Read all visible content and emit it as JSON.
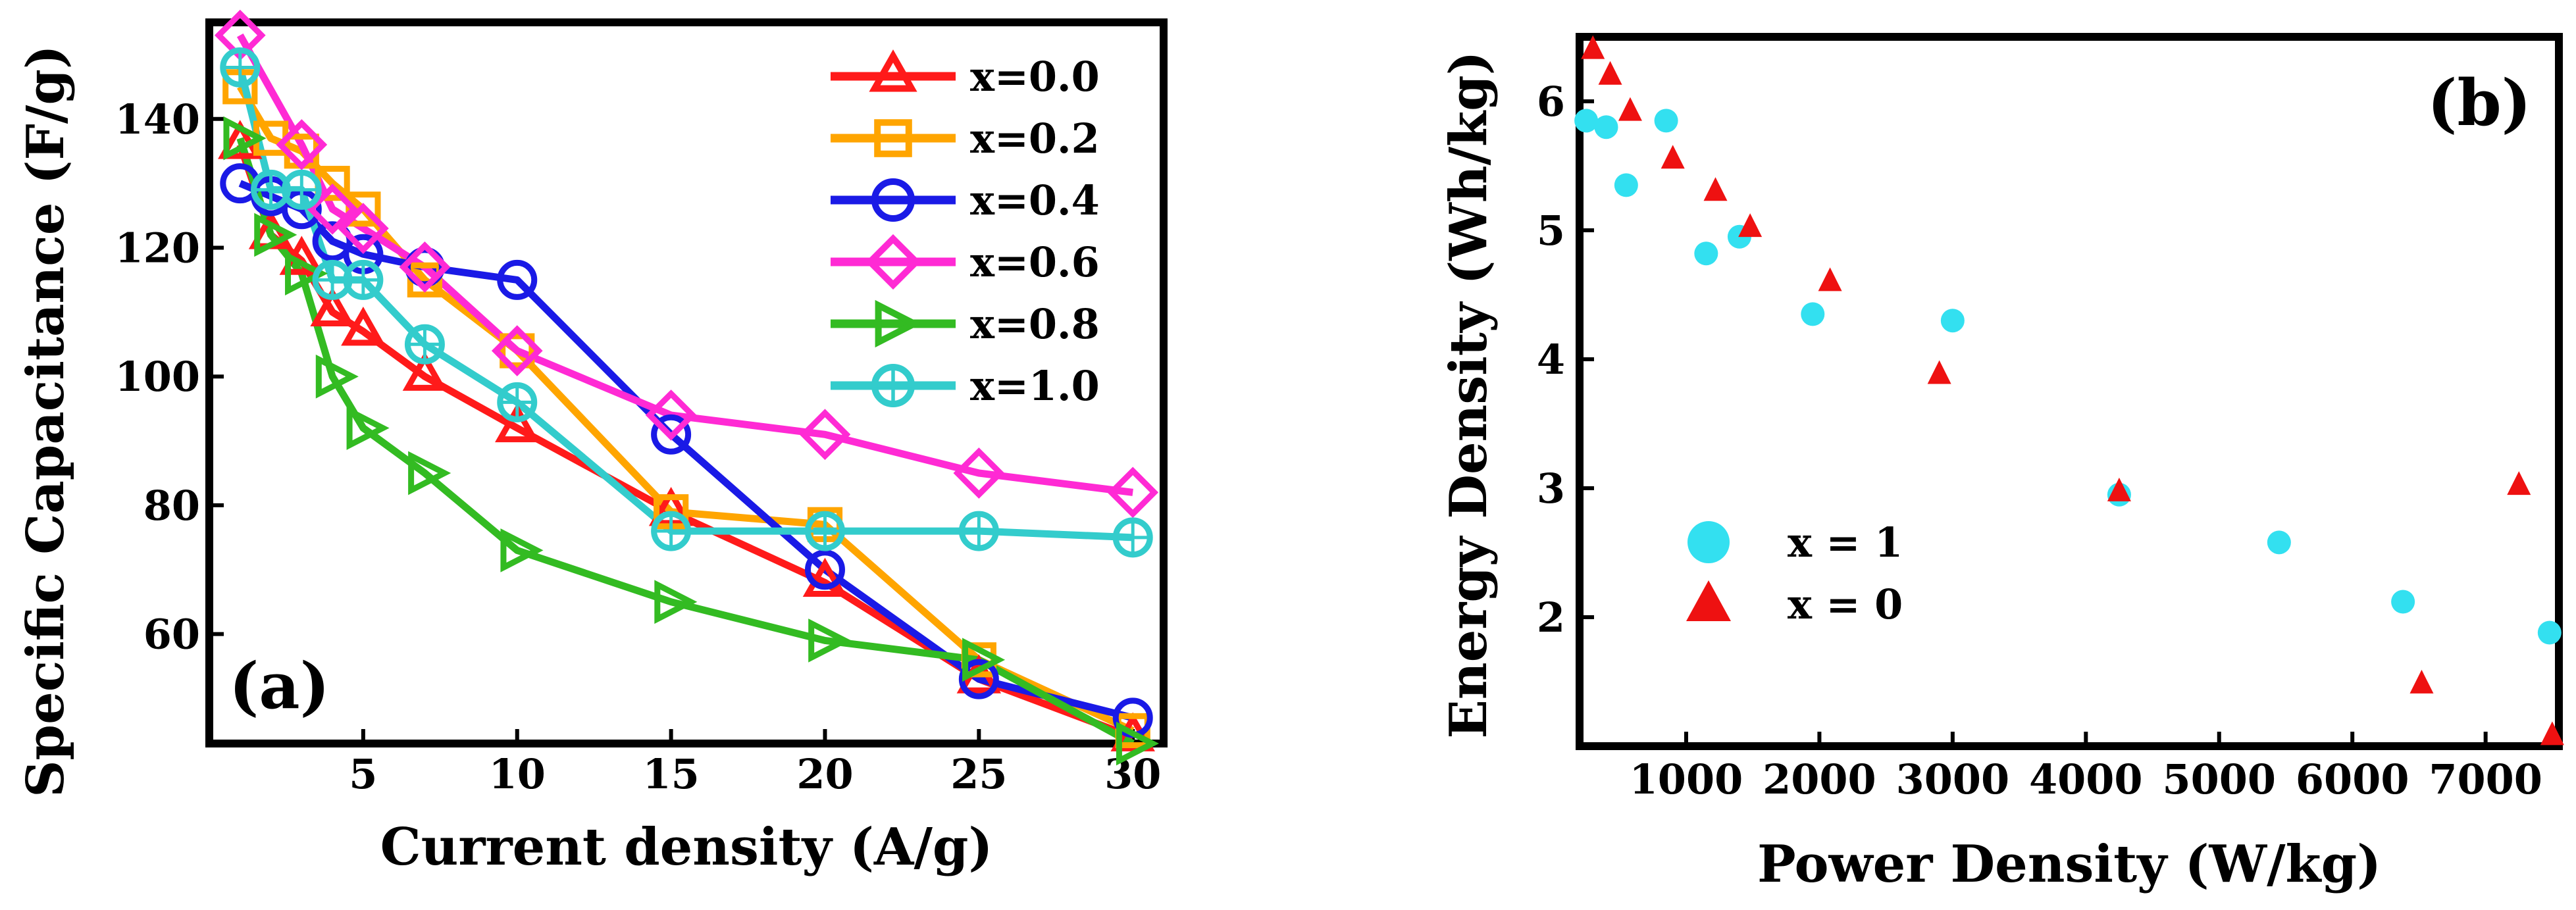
{
  "chart_data": [
    {
      "type": "line",
      "panel_label": "(a)",
      "xlabel": "Current density (A/g)",
      "ylabel": "Specific Capacitance (F/g)",
      "xlim": [
        0,
        31
      ],
      "ylim": [
        43,
        155
      ],
      "xticks": [
        5,
        10,
        15,
        20,
        25,
        30
      ],
      "yticks": [
        60,
        80,
        100,
        120,
        140
      ],
      "legend_position": "top-right",
      "series": [
        {
          "name": "x=0.0",
          "marker": "triangle-up",
          "color": "#ff1a1a",
          "x": [
            1,
            2,
            3,
            4,
            5,
            7,
            10,
            15,
            20,
            25,
            30
          ],
          "y": [
            136,
            122,
            118,
            110,
            107,
            100,
            92,
            79,
            68,
            53,
            44
          ]
        },
        {
          "name": "x=0.2",
          "marker": "square",
          "color": "#ffa500",
          "x": [
            1,
            2,
            3,
            4,
            5,
            7,
            10,
            15,
            20,
            25,
            30
          ],
          "y": [
            145,
            137,
            135,
            130,
            126,
            115,
            104,
            79,
            77,
            56,
            45
          ]
        },
        {
          "name": "x=0.4",
          "marker": "circle",
          "color": "#1a1ae6",
          "x": [
            1,
            2,
            3,
            4,
            5,
            7,
            10,
            15,
            20,
            25,
            30
          ],
          "y": [
            130,
            128,
            126,
            121,
            119,
            117,
            115,
            91,
            70,
            53,
            47
          ]
        },
        {
          "name": "x=0.6",
          "marker": "diamond",
          "color": "#ff2ad4",
          "x": [
            1,
            3,
            4,
            5,
            7,
            10,
            15,
            20,
            25,
            30
          ],
          "y": [
            153,
            136,
            126,
            123,
            117,
            104,
            94,
            91,
            85,
            82
          ]
        },
        {
          "name": "x=0.8",
          "marker": "triangle-right",
          "color": "#33bb22",
          "x": [
            1,
            2,
            3,
            4,
            5,
            7,
            10,
            15,
            20,
            25,
            30
          ],
          "y": [
            137,
            122,
            116,
            100,
            92,
            85,
            73,
            65,
            59,
            56,
            43
          ]
        },
        {
          "name": "x=1.0",
          "marker": "circle-cross",
          "color": "#33cccc",
          "x": [
            1,
            2,
            3,
            4,
            5,
            7,
            10,
            15,
            20,
            25,
            30
          ],
          "y": [
            148,
            129,
            129,
            115,
            115,
            105,
            96,
            76,
            76,
            76,
            75
          ]
        }
      ]
    },
    {
      "type": "scatter",
      "panel_label": "(b)",
      "xlabel": "Power Density (W/kg)",
      "ylabel": "Energy Density (Wh/kg)",
      "xlim": [
        200,
        7550
      ],
      "ylim": [
        1,
        6.5
      ],
      "xticks": [
        1000,
        2000,
        3000,
        4000,
        5000,
        6000,
        7000
      ],
      "yticks": [
        2,
        3,
        4,
        5,
        6
      ],
      "legend_position": "lower-left",
      "series": [
        {
          "name": "x = 1",
          "marker": "circle",
          "color": "#33e0f0",
          "x": [
            250,
            400,
            550,
            850,
            1150,
            1400,
            1950,
            3000,
            4250,
            5450,
            6380,
            7480
          ],
          "y": [
            5.85,
            5.8,
            5.35,
            5.85,
            4.82,
            4.95,
            4.35,
            4.3,
            2.95,
            2.58,
            2.12,
            1.88
          ]
        },
        {
          "name": "x = 0",
          "marker": "triangle-up",
          "color": "#ee1111",
          "x": [
            300,
            430,
            580,
            900,
            1220,
            1480,
            2080,
            2900,
            4250,
            6520,
            7250,
            7500
          ],
          "y": [
            6.4,
            6.2,
            5.92,
            5.55,
            5.3,
            5.02,
            4.6,
            3.88,
            2.97,
            1.48,
            3.02,
            1.08
          ]
        }
      ]
    }
  ]
}
